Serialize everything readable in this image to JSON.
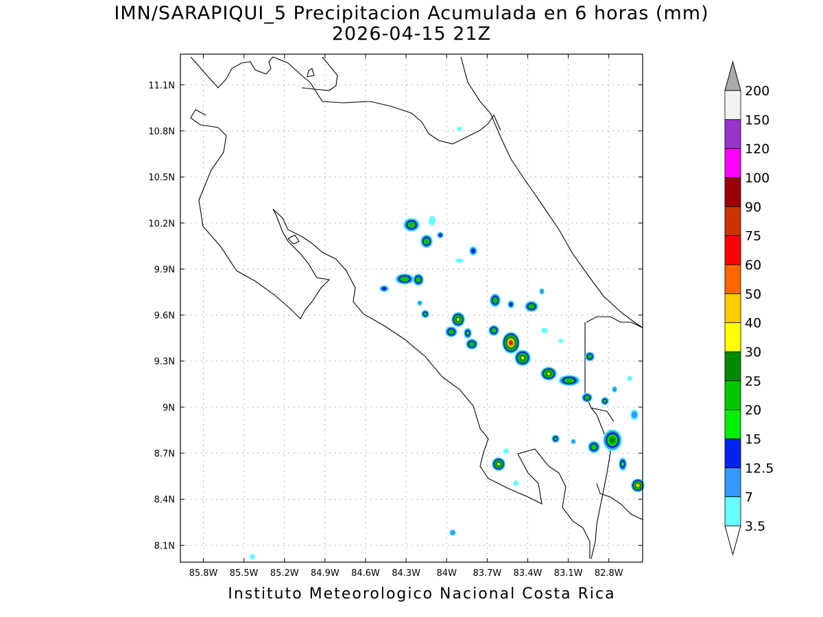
{
  "title": {
    "line1": "IMN/SARAPIQUI_5 Precipitacion Acumulada en 6 horas (mm)",
    "line2": "2026-04-15 21Z"
  },
  "map": {
    "lon_ticks": [
      "85.8W",
      "85.5W",
      "85.2W",
      "84.9W",
      "84.6W",
      "84.3W",
      "84W",
      "83.7W",
      "83.4W",
      "83.1W",
      "82.8W"
    ],
    "lat_ticks": [
      "11.1N",
      "10.8N",
      "10.5N",
      "10.2N",
      "9.9N",
      "9.6N",
      "9.3N",
      "9N",
      "8.7N",
      "8.4N",
      "8.1N"
    ],
    "grid": true,
    "lon_range": [
      -85.97,
      -82.55
    ],
    "lat_range": [
      7.99,
      11.3
    ]
  },
  "colorbar": {
    "labels": [
      "3.5",
      "7",
      "12.5",
      "15",
      "20",
      "25",
      "30",
      "40",
      "50",
      "60",
      "75",
      "90",
      "100",
      "120",
      "150",
      "200"
    ],
    "colors": [
      "#66ffff",
      "#3399ff",
      "#0022ee",
      "#00ee00",
      "#00c800",
      "#008a00",
      "#ffff00",
      "#ffcc00",
      "#ff6600",
      "#ff0000",
      "#cc3300",
      "#990000",
      "#ff00ff",
      "#9933cc",
      "#f2f2f2",
      "#aaaaaa"
    ],
    "bottom_cap_color": "#ffffff",
    "top_cap_color": "#aaaaaa"
  },
  "footer": "Instituto Meteorologico Nacional Costa Rica"
}
